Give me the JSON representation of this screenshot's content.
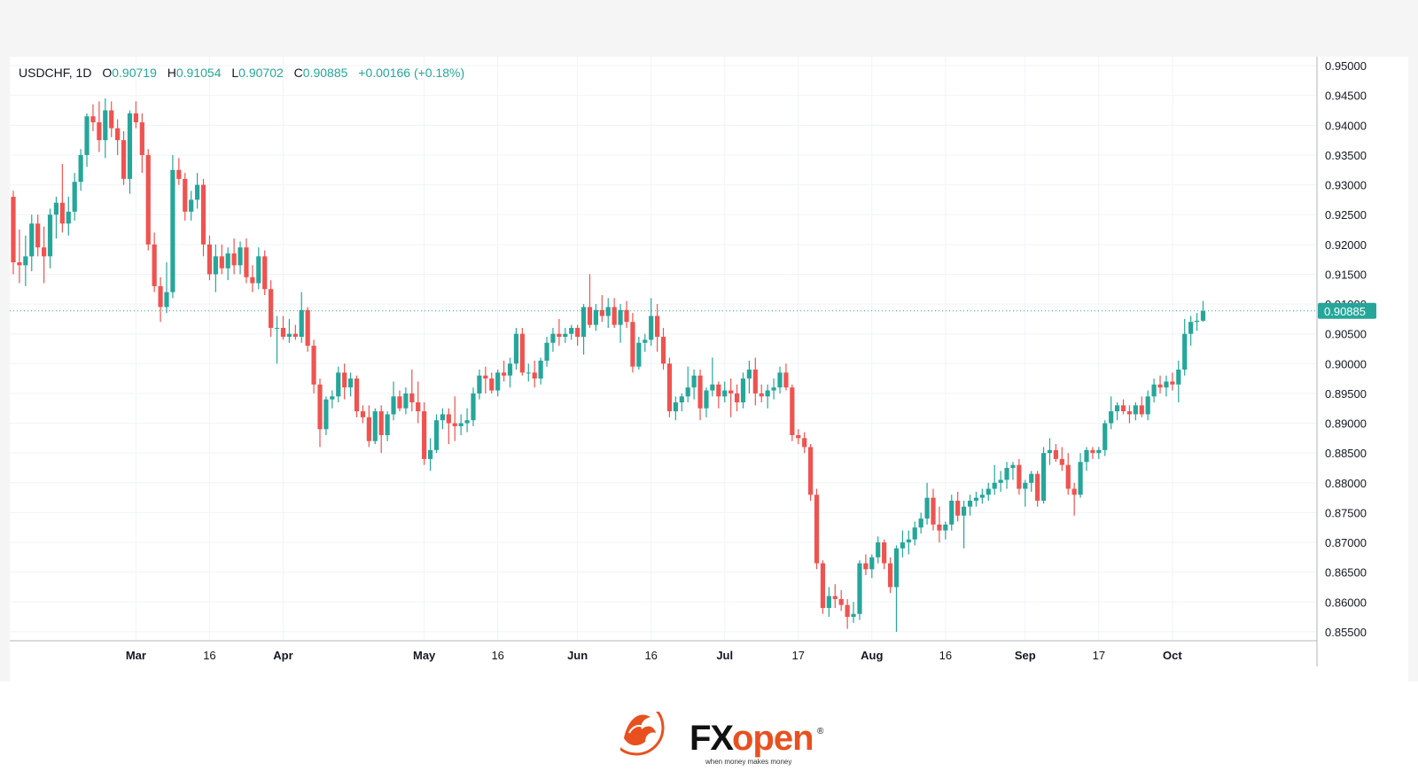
{
  "legend": {
    "symbol": "USDCHF, 1D",
    "open_label": "O",
    "open": "0.90719",
    "high_label": "H",
    "high": "0.91054",
    "low_label": "L",
    "low": "0.90702",
    "close_label": "C",
    "close": "0.90885",
    "change": "+0.00166 (+0.18%)"
  },
  "branding": {
    "name_fx": "FX",
    "name_open": "open",
    "registered": "®",
    "tagline": "when money makes money"
  },
  "colors": {
    "up": "#26a69a",
    "down": "#ef5350",
    "grid": "#f0f3fa",
    "axis_text": "#131722",
    "price_label_bg": "#26a69a",
    "brand_orange": "#e8511f"
  },
  "chart_data": {
    "type": "candlestick",
    "symbol": "USDCHF",
    "timeframe": "1D",
    "grid": true,
    "price_scale_side": "right",
    "ylim": [
      0.8535,
      0.9515
    ],
    "y_ticks": [
      "0.95000",
      "0.94500",
      "0.94000",
      "0.93500",
      "0.93000",
      "0.92500",
      "0.92000",
      "0.91500",
      "0.91000",
      "0.90500",
      "0.90000",
      "0.89500",
      "0.89000",
      "0.88500",
      "0.88000",
      "0.87500",
      "0.87000",
      "0.86500",
      "0.86000",
      "0.85500"
    ],
    "x_ticks": [
      {
        "label": "Mar",
        "index": 20
      },
      {
        "label": "16",
        "index": 32
      },
      {
        "label": "Apr",
        "index": 44
      },
      {
        "label": "May",
        "index": 67
      },
      {
        "label": "16",
        "index": 79
      },
      {
        "label": "Jun",
        "index": 92
      },
      {
        "label": "16",
        "index": 104
      },
      {
        "label": "Jul",
        "index": 116
      },
      {
        "label": "17",
        "index": 128
      },
      {
        "label": "Aug",
        "index": 140
      },
      {
        "label": "16",
        "index": 152
      },
      {
        "label": "Sep",
        "index": 165
      },
      {
        "label": "17",
        "index": 177
      },
      {
        "label": "Oct",
        "index": 189
      }
    ],
    "last_price": "0.90885",
    "candles": [
      [
        0.928,
        0.929,
        0.915,
        0.917
      ],
      [
        0.917,
        0.9225,
        0.9135,
        0.9165
      ],
      [
        0.9165,
        0.9215,
        0.913,
        0.918
      ],
      [
        0.918,
        0.925,
        0.9155,
        0.9235
      ],
      [
        0.9235,
        0.925,
        0.918,
        0.9195
      ],
      [
        0.9195,
        0.923,
        0.9135,
        0.918
      ],
      [
        0.918,
        0.926,
        0.916,
        0.925
      ],
      [
        0.925,
        0.928,
        0.921,
        0.927
      ],
      [
        0.927,
        0.9335,
        0.922,
        0.9235
      ],
      [
        0.9235,
        0.928,
        0.9215,
        0.9255
      ],
      [
        0.9255,
        0.932,
        0.924,
        0.9305
      ],
      [
        0.9305,
        0.936,
        0.929,
        0.935
      ],
      [
        0.935,
        0.942,
        0.933,
        0.9415
      ],
      [
        0.9415,
        0.9435,
        0.939,
        0.9405
      ],
      [
        0.9405,
        0.944,
        0.9355,
        0.9375
      ],
      [
        0.9375,
        0.9445,
        0.9345,
        0.9425
      ],
      [
        0.9425,
        0.944,
        0.938,
        0.9395
      ],
      [
        0.9395,
        0.941,
        0.935,
        0.9375
      ],
      [
        0.9375,
        0.939,
        0.93,
        0.931
      ],
      [
        0.931,
        0.9425,
        0.9285,
        0.942
      ],
      [
        0.942,
        0.944,
        0.9395,
        0.9405
      ],
      [
        0.9405,
        0.942,
        0.932,
        0.935
      ],
      [
        0.935,
        0.936,
        0.919,
        0.92
      ],
      [
        0.92,
        0.922,
        0.912,
        0.913
      ],
      [
        0.913,
        0.9145,
        0.907,
        0.9095
      ],
      [
        0.9095,
        0.917,
        0.9085,
        0.912
      ],
      [
        0.912,
        0.935,
        0.911,
        0.9325
      ],
      [
        0.9325,
        0.9345,
        0.93,
        0.931
      ],
      [
        0.931,
        0.932,
        0.924,
        0.9255
      ],
      [
        0.9255,
        0.929,
        0.924,
        0.9275
      ],
      [
        0.9275,
        0.932,
        0.926,
        0.93
      ],
      [
        0.93,
        0.931,
        0.918,
        0.92
      ],
      [
        0.92,
        0.9215,
        0.914,
        0.915
      ],
      [
        0.915,
        0.92,
        0.912,
        0.918
      ],
      [
        0.918,
        0.92,
        0.915,
        0.916
      ],
      [
        0.916,
        0.9195,
        0.914,
        0.9185
      ],
      [
        0.9185,
        0.921,
        0.915,
        0.9165
      ],
      [
        0.9165,
        0.9205,
        0.915,
        0.9195
      ],
      [
        0.9195,
        0.921,
        0.9135,
        0.9145
      ],
      [
        0.9145,
        0.9165,
        0.912,
        0.9135
      ],
      [
        0.9135,
        0.9195,
        0.9125,
        0.918
      ],
      [
        0.918,
        0.919,
        0.9115,
        0.9125
      ],
      [
        0.9125,
        0.914,
        0.9045,
        0.906
      ],
      [
        0.906,
        0.908,
        0.9,
        0.906
      ],
      [
        0.906,
        0.908,
        0.904,
        0.9045
      ],
      [
        0.9045,
        0.9075,
        0.9035,
        0.905
      ],
      [
        0.905,
        0.9065,
        0.904,
        0.9045
      ],
      [
        0.9045,
        0.912,
        0.9035,
        0.909
      ],
      [
        0.909,
        0.9095,
        0.902,
        0.903
      ],
      [
        0.903,
        0.904,
        0.895,
        0.8965
      ],
      [
        0.8965,
        0.8975,
        0.886,
        0.889
      ],
      [
        0.889,
        0.8945,
        0.888,
        0.894
      ],
      [
        0.894,
        0.8955,
        0.8925,
        0.8945
      ],
      [
        0.8945,
        0.8995,
        0.8935,
        0.8985
      ],
      [
        0.8985,
        0.9,
        0.894,
        0.896
      ],
      [
        0.896,
        0.8985,
        0.8945,
        0.8975
      ],
      [
        0.8975,
        0.898,
        0.891,
        0.892
      ],
      [
        0.892,
        0.893,
        0.89,
        0.891
      ],
      [
        0.891,
        0.893,
        0.886,
        0.887
      ],
      [
        0.887,
        0.8925,
        0.8865,
        0.892
      ],
      [
        0.892,
        0.893,
        0.885,
        0.888
      ],
      [
        0.888,
        0.892,
        0.887,
        0.8915
      ],
      [
        0.8915,
        0.897,
        0.8905,
        0.8945
      ],
      [
        0.8945,
        0.8955,
        0.892,
        0.8925
      ],
      [
        0.8925,
        0.896,
        0.8915,
        0.895
      ],
      [
        0.895,
        0.899,
        0.892,
        0.8935
      ],
      [
        0.8935,
        0.897,
        0.89,
        0.892
      ],
      [
        0.892,
        0.8935,
        0.883,
        0.884
      ],
      [
        0.884,
        0.8875,
        0.882,
        0.8855
      ],
      [
        0.8855,
        0.8915,
        0.885,
        0.8905
      ],
      [
        0.8905,
        0.8925,
        0.889,
        0.8915
      ],
      [
        0.8915,
        0.8925,
        0.8865,
        0.89
      ],
      [
        0.89,
        0.8945,
        0.887,
        0.8895
      ],
      [
        0.8895,
        0.8915,
        0.888,
        0.89
      ],
      [
        0.89,
        0.8925,
        0.8885,
        0.8905
      ],
      [
        0.8905,
        0.896,
        0.8895,
        0.895
      ],
      [
        0.895,
        0.899,
        0.894,
        0.898
      ],
      [
        0.898,
        0.8995,
        0.895,
        0.8975
      ],
      [
        0.8975,
        0.8985,
        0.895,
        0.8955
      ],
      [
        0.8955,
        0.899,
        0.8945,
        0.8985
      ],
      [
        0.8985,
        0.9005,
        0.897,
        0.898
      ],
      [
        0.898,
        0.901,
        0.896,
        0.9
      ],
      [
        0.9,
        0.906,
        0.899,
        0.905
      ],
      [
        0.905,
        0.906,
        0.898,
        0.8985
      ],
      [
        0.8985,
        0.9,
        0.897,
        0.8985
      ],
      [
        0.8985,
        0.9005,
        0.896,
        0.8975
      ],
      [
        0.8975,
        0.901,
        0.8965,
        0.9005
      ],
      [
        0.9005,
        0.9045,
        0.8995,
        0.9035
      ],
      [
        0.9035,
        0.906,
        0.902,
        0.905
      ],
      [
        0.905,
        0.9075,
        0.903,
        0.9045
      ],
      [
        0.9045,
        0.906,
        0.9035,
        0.905
      ],
      [
        0.905,
        0.9065,
        0.904,
        0.906
      ],
      [
        0.906,
        0.9065,
        0.903,
        0.9045
      ],
      [
        0.9045,
        0.91,
        0.9015,
        0.9095
      ],
      [
        0.9095,
        0.915,
        0.906,
        0.9065
      ],
      [
        0.9065,
        0.91,
        0.9055,
        0.909
      ],
      [
        0.909,
        0.9115,
        0.907,
        0.908
      ],
      [
        0.908,
        0.911,
        0.906,
        0.9095
      ],
      [
        0.9095,
        0.911,
        0.906,
        0.9065
      ],
      [
        0.9065,
        0.91,
        0.9035,
        0.909
      ],
      [
        0.909,
        0.9105,
        0.906,
        0.907
      ],
      [
        0.907,
        0.9085,
        0.8985,
        0.8995
      ],
      [
        0.8995,
        0.9045,
        0.899,
        0.9035
      ],
      [
        0.9035,
        0.905,
        0.902,
        0.904
      ],
      [
        0.904,
        0.911,
        0.903,
        0.908
      ],
      [
        0.908,
        0.91,
        0.902,
        0.9045
      ],
      [
        0.9045,
        0.906,
        0.899,
        0.9
      ],
      [
        0.9,
        0.901,
        0.891,
        0.892
      ],
      [
        0.892,
        0.8945,
        0.8905,
        0.8935
      ],
      [
        0.8935,
        0.895,
        0.892,
        0.8945
      ],
      [
        0.8945,
        0.8995,
        0.8935,
        0.896
      ],
      [
        0.896,
        0.899,
        0.894,
        0.898
      ],
      [
        0.898,
        0.899,
        0.8905,
        0.8925
      ],
      [
        0.8925,
        0.896,
        0.891,
        0.8955
      ],
      [
        0.8955,
        0.901,
        0.8945,
        0.8965
      ],
      [
        0.8965,
        0.897,
        0.8925,
        0.8945
      ],
      [
        0.8945,
        0.897,
        0.8935,
        0.8955
      ],
      [
        0.8955,
        0.8975,
        0.891,
        0.895
      ],
      [
        0.895,
        0.8965,
        0.892,
        0.8935
      ],
      [
        0.8935,
        0.8985,
        0.8925,
        0.8975
      ],
      [
        0.8975,
        0.9005,
        0.895,
        0.899
      ],
      [
        0.899,
        0.901,
        0.893,
        0.895
      ],
      [
        0.895,
        0.8965,
        0.8935,
        0.8945
      ],
      [
        0.8945,
        0.8965,
        0.8925,
        0.8955
      ],
      [
        0.8955,
        0.8975,
        0.894,
        0.896
      ],
      [
        0.896,
        0.8995,
        0.895,
        0.8985
      ],
      [
        0.8985,
        0.9,
        0.8955,
        0.896
      ],
      [
        0.896,
        0.8965,
        0.887,
        0.888
      ],
      [
        0.888,
        0.889,
        0.8865,
        0.8875
      ],
      [
        0.8875,
        0.8885,
        0.885,
        0.886
      ],
      [
        0.886,
        0.8865,
        0.877,
        0.878
      ],
      [
        0.878,
        0.879,
        0.8655,
        0.8665
      ],
      [
        0.8665,
        0.867,
        0.858,
        0.859
      ],
      [
        0.859,
        0.8625,
        0.8575,
        0.861
      ],
      [
        0.861,
        0.863,
        0.859,
        0.8605
      ],
      [
        0.8605,
        0.862,
        0.8585,
        0.8595
      ],
      [
        0.8595,
        0.8605,
        0.8555,
        0.8575
      ],
      [
        0.8575,
        0.86,
        0.8565,
        0.858
      ],
      [
        0.858,
        0.867,
        0.857,
        0.8665
      ],
      [
        0.8665,
        0.868,
        0.8645,
        0.8655
      ],
      [
        0.8655,
        0.868,
        0.864,
        0.8675
      ],
      [
        0.8675,
        0.871,
        0.8665,
        0.87
      ],
      [
        0.87,
        0.8705,
        0.8655,
        0.8665
      ],
      [
        0.8665,
        0.8675,
        0.8615,
        0.8625
      ],
      [
        0.8625,
        0.8695,
        0.855,
        0.869
      ],
      [
        0.869,
        0.872,
        0.8675,
        0.87
      ],
      [
        0.87,
        0.872,
        0.868,
        0.8705
      ],
      [
        0.8705,
        0.8735,
        0.8695,
        0.8725
      ],
      [
        0.8725,
        0.875,
        0.8715,
        0.874
      ],
      [
        0.874,
        0.88,
        0.873,
        0.8775
      ],
      [
        0.8775,
        0.879,
        0.872,
        0.873
      ],
      [
        0.873,
        0.876,
        0.87,
        0.872
      ],
      [
        0.872,
        0.8735,
        0.8705,
        0.873
      ],
      [
        0.873,
        0.878,
        0.872,
        0.877
      ],
      [
        0.877,
        0.8785,
        0.8735,
        0.8745
      ],
      [
        0.8745,
        0.877,
        0.869,
        0.876
      ],
      [
        0.876,
        0.878,
        0.8745,
        0.877
      ],
      [
        0.877,
        0.8785,
        0.876,
        0.8775
      ],
      [
        0.8775,
        0.879,
        0.8765,
        0.878
      ],
      [
        0.878,
        0.88,
        0.877,
        0.879
      ],
      [
        0.879,
        0.883,
        0.878,
        0.88
      ],
      [
        0.88,
        0.882,
        0.8785,
        0.8805
      ],
      [
        0.8805,
        0.8835,
        0.879,
        0.8825
      ],
      [
        0.8825,
        0.8835,
        0.8805,
        0.883
      ],
      [
        0.883,
        0.884,
        0.878,
        0.879
      ],
      [
        0.879,
        0.8805,
        0.876,
        0.88
      ],
      [
        0.88,
        0.882,
        0.8785,
        0.8815
      ],
      [
        0.8815,
        0.882,
        0.876,
        0.877
      ],
      [
        0.877,
        0.886,
        0.8765,
        0.885
      ],
      [
        0.885,
        0.8875,
        0.883,
        0.8855
      ],
      [
        0.8855,
        0.8865,
        0.8835,
        0.884
      ],
      [
        0.884,
        0.886,
        0.882,
        0.883
      ],
      [
        0.883,
        0.885,
        0.878,
        0.879
      ],
      [
        0.879,
        0.88,
        0.8745,
        0.878
      ],
      [
        0.878,
        0.885,
        0.8775,
        0.8835
      ],
      [
        0.8835,
        0.886,
        0.882,
        0.8855
      ],
      [
        0.8855,
        0.886,
        0.884,
        0.885
      ],
      [
        0.885,
        0.886,
        0.884,
        0.8855
      ],
      [
        0.8855,
        0.8905,
        0.8845,
        0.89
      ],
      [
        0.89,
        0.8945,
        0.889,
        0.892
      ],
      [
        0.892,
        0.8935,
        0.8905,
        0.893
      ],
      [
        0.893,
        0.894,
        0.8915,
        0.892
      ],
      [
        0.892,
        0.893,
        0.89,
        0.8915
      ],
      [
        0.8915,
        0.8935,
        0.8905,
        0.893
      ],
      [
        0.893,
        0.8945,
        0.891,
        0.8915
      ],
      [
        0.8915,
        0.8955,
        0.8905,
        0.8945
      ],
      [
        0.8945,
        0.8975,
        0.8935,
        0.8965
      ],
      [
        0.8965,
        0.898,
        0.895,
        0.896
      ],
      [
        0.896,
        0.898,
        0.8945,
        0.897
      ],
      [
        0.897,
        0.8985,
        0.8955,
        0.8965
      ],
      [
        0.8965,
        0.9005,
        0.8935,
        0.899
      ],
      [
        0.899,
        0.9075,
        0.898,
        0.905
      ],
      [
        0.905,
        0.908,
        0.903,
        0.907
      ],
      [
        0.907,
        0.9085,
        0.9055,
        0.9072
      ],
      [
        0.9072,
        0.9105,
        0.907,
        0.90885
      ]
    ]
  }
}
